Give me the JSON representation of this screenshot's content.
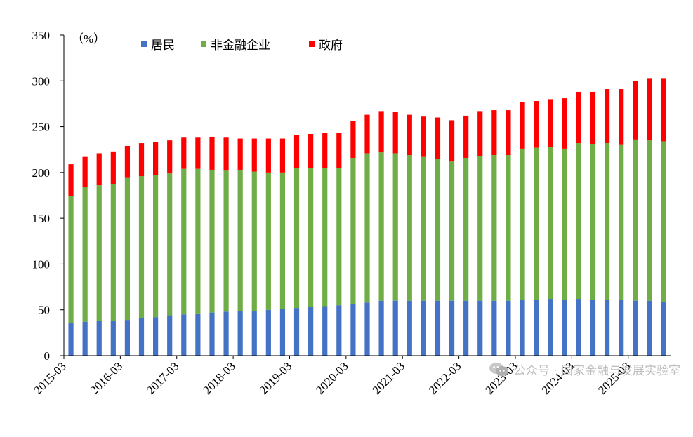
{
  "chart_data": {
    "type": "bar",
    "stacked": true,
    "unit_label": "（%）",
    "ylim": [
      0,
      350
    ],
    "yticks": [
      0,
      50,
      100,
      150,
      200,
      250,
      300,
      350
    ],
    "x_tick_labels": [
      "2015-03",
      "2016-03",
      "2017-03",
      "2018-03",
      "2019-03",
      "2020-03",
      "2021-03",
      "2022-03",
      "2023-03",
      "2024-03",
      "2025-03"
    ],
    "categories": [
      "2015-03",
      "2015-06",
      "2015-09",
      "2015-12",
      "2016-03",
      "2016-06",
      "2016-09",
      "2016-12",
      "2017-03",
      "2017-06",
      "2017-09",
      "2017-12",
      "2018-03",
      "2018-06",
      "2018-09",
      "2018-12",
      "2019-03",
      "2019-06",
      "2019-09",
      "2019-12",
      "2020-03",
      "2020-06",
      "2020-09",
      "2020-12",
      "2021-03",
      "2021-06",
      "2021-09",
      "2021-12",
      "2022-03",
      "2022-06",
      "2022-09",
      "2022-12",
      "2023-03",
      "2023-06",
      "2023-09",
      "2023-12",
      "2024-03",
      "2024-06",
      "2024-09",
      "2024-12",
      "2025-03",
      "2025-06",
      "2025-09"
    ],
    "legend_position": "top-left",
    "grid": false,
    "series": [
      {
        "name": "居民",
        "color": "#4472C4",
        "values": [
          36,
          37,
          38,
          38,
          39,
          41,
          42,
          44,
          45,
          46,
          47,
          48,
          49,
          49,
          50,
          51,
          52,
          53,
          54,
          55,
          56,
          58,
          60,
          60,
          60,
          60,
          60,
          60,
          60,
          60,
          60,
          60,
          61,
          61,
          62,
          61,
          62,
          61,
          61,
          61,
          60,
          60,
          59
        ]
      },
      {
        "name": "非金融企业",
        "color": "#70AD47",
        "values": [
          138,
          147,
          148,
          149,
          155,
          155,
          155,
          155,
          159,
          158,
          156,
          154,
          154,
          152,
          150,
          149,
          153,
          152,
          151,
          150,
          160,
          163,
          162,
          161,
          159,
          157,
          155,
          152,
          156,
          158,
          159,
          159,
          165,
          166,
          166,
          165,
          170,
          170,
          171,
          169,
          176,
          175,
          175
        ]
      },
      {
        "name": "政府",
        "color": "#FF0000",
        "values": [
          35,
          33,
          35,
          36,
          35,
          36,
          36,
          36,
          34,
          34,
          36,
          36,
          34,
          36,
          37,
          37,
          36,
          37,
          38,
          38,
          40,
          42,
          45,
          45,
          44,
          44,
          45,
          45,
          46,
          49,
          49,
          49,
          51,
          51,
          52,
          55,
          56,
          57,
          59,
          61,
          64,
          68,
          69
        ]
      }
    ]
  },
  "watermark": {
    "text": "公众号 · 国家金融与发展实验室",
    "icon": "wechat-icon"
  }
}
